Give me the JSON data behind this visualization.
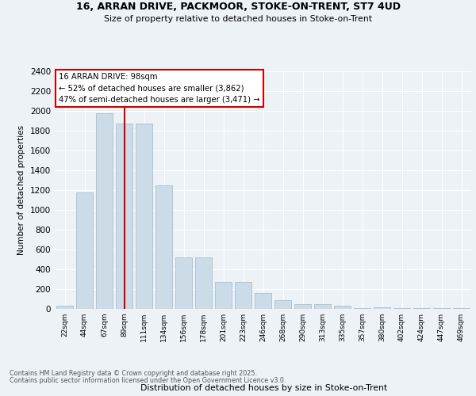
{
  "title1": "16, ARRAN DRIVE, PACKMOOR, STOKE-ON-TRENT, ST7 4UD",
  "title2": "Size of property relative to detached houses in Stoke-on-Trent",
  "xlabel": "Distribution of detached houses by size in Stoke-on-Trent",
  "ylabel": "Number of detached properties",
  "categories": [
    "22sqm",
    "44sqm",
    "67sqm",
    "89sqm",
    "111sqm",
    "134sqm",
    "156sqm",
    "178sqm",
    "201sqm",
    "223sqm",
    "246sqm",
    "268sqm",
    "290sqm",
    "313sqm",
    "335sqm",
    "357sqm",
    "380sqm",
    "402sqm",
    "424sqm",
    "447sqm",
    "469sqm"
  ],
  "values": [
    30,
    1175,
    1975,
    1870,
    1870,
    1250,
    520,
    520,
    270,
    270,
    160,
    85,
    50,
    50,
    35,
    10,
    15,
    8,
    5,
    5,
    5
  ],
  "bar_color": "#ccdbe8",
  "bar_edge_color": "#a8bfd0",
  "ref_line_index": 3,
  "ref_line_color": "#cc0000",
  "annotation_text": "16 ARRAN DRIVE: 98sqm\n← 52% of detached houses are smaller (3,862)\n47% of semi-detached houses are larger (3,471) →",
  "annotation_box_facecolor": "white",
  "annotation_box_edgecolor": "#cc0000",
  "footer1": "Contains HM Land Registry data © Crown copyright and database right 2025.",
  "footer2": "Contains public sector information licensed under the Open Government Licence v3.0.",
  "ylim_max": 2400,
  "yticks": [
    0,
    200,
    400,
    600,
    800,
    1000,
    1200,
    1400,
    1600,
    1800,
    2000,
    2200,
    2400
  ],
  "bg_color": "#edf2f7"
}
